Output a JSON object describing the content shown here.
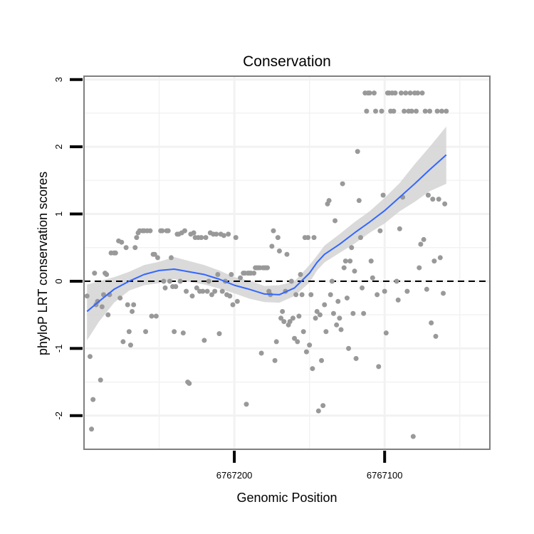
{
  "chart_data": {
    "type": "scatter",
    "title": "Conservation",
    "xlabel": "Genomic Position",
    "ylabel": "phyloP LRT conservation scores",
    "xlim": [
      6767300,
      6767030
    ],
    "ylim": [
      -2.5,
      3.05
    ],
    "x_ticks": [
      {
        "value": 6767200,
        "label": "6767200"
      },
      {
        "value": 6767100,
        "label": "6767100"
      }
    ],
    "y_ticks": [
      {
        "value": -2,
        "label": "-2"
      },
      {
        "value": -1,
        "label": "-1"
      },
      {
        "value": 0,
        "label": "0"
      },
      {
        "value": 1,
        "label": "1"
      },
      {
        "value": 2,
        "label": "2"
      },
      {
        "value": 3,
        "label": "3"
      }
    ],
    "reference_line": {
      "y": 0,
      "style": "dashed",
      "color": "#000000"
    },
    "grid": true,
    "colors": {
      "points": "#999999",
      "smooth_line": "#3366ff",
      "confidence_band": "#d3d3d3",
      "panel_border": "#7f7f7f",
      "gridlines": "#f2f2f2"
    },
    "series": [
      {
        "name": "phyloP LRT scores",
        "type": "scatter",
        "points": [
          [
            6767298,
            -0.22
          ],
          [
            6767296,
            -1.12
          ],
          [
            6767295,
            -2.2
          ],
          [
            6767294,
            -1.76
          ],
          [
            6767293,
            0.12
          ],
          [
            6767292,
            -0.35
          ],
          [
            6767291,
            -0.3
          ],
          [
            6767289,
            -1.47
          ],
          [
            6767288,
            -0.38
          ],
          [
            6767287,
            -0.2
          ],
          [
            6767286,
            0.12
          ],
          [
            6767285,
            0.1
          ],
          [
            6767284,
            -0.5
          ],
          [
            6767283,
            -0.2
          ],
          [
            6767282,
            0.42
          ],
          [
            6767280,
            0.42
          ],
          [
            6767279,
            0.42
          ],
          [
            6767277,
            0.6
          ],
          [
            6767276,
            -0.25
          ],
          [
            6767275,
            0.58
          ],
          [
            6767274,
            -0.9
          ],
          [
            6767272,
            0.5
          ],
          [
            6767271,
            -0.35
          ],
          [
            6767270,
            -0.75
          ],
          [
            6767269,
            -0.95
          ],
          [
            6767268,
            -0.45
          ],
          [
            6767267,
            -0.35
          ],
          [
            6767266,
            0.5
          ],
          [
            6767265,
            0.65
          ],
          [
            6767264,
            0.72
          ],
          [
            6767263,
            0.75
          ],
          [
            6767261,
            0.75
          ],
          [
            6767260,
            0.75
          ],
          [
            6767259,
            -0.75
          ],
          [
            6767258,
            0.75
          ],
          [
            6767256,
            0.75
          ],
          [
            6767255,
            -0.52
          ],
          [
            6767254,
            0.4
          ],
          [
            6767253,
            0.4
          ],
          [
            6767252,
            -0.52
          ],
          [
            6767251,
            0.35
          ],
          [
            6767249,
            0.75
          ],
          [
            6767248,
            0.75
          ],
          [
            6767247,
            0.0
          ],
          [
            6767246,
            -0.1
          ],
          [
            6767245,
            0.75
          ],
          [
            6767244,
            0.75
          ],
          [
            6767243,
            0.0
          ],
          [
            6767242,
            0.35
          ],
          [
            6767241,
            -0.08
          ],
          [
            6767240,
            -0.75
          ],
          [
            6767239,
            -0.08
          ],
          [
            6767238,
            0.7
          ],
          [
            6767237,
            0.7
          ],
          [
            6767236,
            0.0
          ],
          [
            6767235,
            0.72
          ],
          [
            6767234,
            -0.77
          ],
          [
            6767233,
            0.75
          ],
          [
            6767232,
            -0.15
          ],
          [
            6767231,
            -1.5
          ],
          [
            6767230,
            -1.52
          ],
          [
            6767229,
            0.7
          ],
          [
            6767228,
            -0.22
          ],
          [
            6767227,
            0.72
          ],
          [
            6767226,
            0.65
          ],
          [
            6767225,
            -0.1
          ],
          [
            6767224,
            0.65
          ],
          [
            6767223,
            -0.15
          ],
          [
            6767222,
            0.65
          ],
          [
            6767221,
            -0.15
          ],
          [
            6767220,
            -0.88
          ],
          [
            6767219,
            0.65
          ],
          [
            6767218,
            -0.15
          ],
          [
            6767217,
            0.0
          ],
          [
            6767216,
            0.72
          ],
          [
            6767215,
            -0.2
          ],
          [
            6767214,
            0.7
          ],
          [
            6767213,
            -0.15
          ],
          [
            6767212,
            0.7
          ],
          [
            6767211,
            0.1
          ],
          [
            6767210,
            -0.78
          ],
          [
            6767209,
            0.7
          ],
          [
            6767208,
            -0.15
          ],
          [
            6767207,
            0.68
          ],
          [
            6767206,
            0.0
          ],
          [
            6767205,
            -0.2
          ],
          [
            6767204,
            0.7
          ],
          [
            6767203,
            -0.22
          ],
          [
            6767202,
            0.1
          ],
          [
            6767201,
            -0.35
          ],
          [
            6767199,
            0.65
          ],
          [
            6767198,
            -0.3
          ],
          [
            6767196,
            0.05
          ],
          [
            6767194,
            0.12
          ],
          [
            6767193,
            0.12
          ],
          [
            6767192,
            -1.83
          ],
          [
            6767191,
            0.12
          ],
          [
            6767190,
            0.12
          ],
          [
            6767189,
            0.12
          ],
          [
            6767187,
            0.12
          ],
          [
            6767186,
            0.2
          ],
          [
            6767185,
            0.2
          ],
          [
            6767184,
            0.2
          ],
          [
            6767183,
            0.2
          ],
          [
            6767182,
            -1.07
          ],
          [
            6767181,
            0.2
          ],
          [
            6767180,
            0.2
          ],
          [
            6767179,
            0.2
          ],
          [
            6767178,
            0.2
          ],
          [
            6767177,
            -0.15
          ],
          [
            6767176,
            -0.2
          ],
          [
            6767175,
            0.52
          ],
          [
            6767174,
            0.75
          ],
          [
            6767173,
            -1.18
          ],
          [
            6767172,
            -0.9
          ],
          [
            6767171,
            0.65
          ],
          [
            6767170,
            0.45
          ],
          [
            6767169,
            -0.55
          ],
          [
            6767168,
            -0.45
          ],
          [
            6767167,
            -0.6
          ],
          [
            6767166,
            -0.15
          ],
          [
            6767165,
            0.4
          ],
          [
            6767164,
            -0.65
          ],
          [
            6767163,
            -0.6
          ],
          [
            6767162,
            0.0
          ],
          [
            6767161,
            -0.55
          ],
          [
            6767160,
            -0.85
          ],
          [
            6767159,
            -0.2
          ],
          [
            6767158,
            -0.9
          ],
          [
            6767157,
            -0.52
          ],
          [
            6767156,
            0.1
          ],
          [
            6767155,
            -0.2
          ],
          [
            6767154,
            -0.75
          ],
          [
            6767153,
            0.65
          ],
          [
            6767152,
            -1.05
          ],
          [
            6767151,
            0.65
          ],
          [
            6767150,
            -0.95
          ],
          [
            6767149,
            -0.2
          ],
          [
            6767148,
            -1.3
          ],
          [
            6767147,
            0.65
          ],
          [
            6767146,
            -0.55
          ],
          [
            6767145,
            -0.45
          ],
          [
            6767144,
            -1.93
          ],
          [
            6767143,
            -0.5
          ],
          [
            6767142,
            -1.18
          ],
          [
            6767141,
            -1.85
          ],
          [
            6767140,
            -0.35
          ],
          [
            6767139,
            -0.75
          ],
          [
            6767138,
            1.15
          ],
          [
            6767137,
            1.2
          ],
          [
            6767136,
            -0.2
          ],
          [
            6767135,
            0.0
          ],
          [
            6767134,
            -0.48
          ],
          [
            6767133,
            0.9
          ],
          [
            6767132,
            -0.65
          ],
          [
            6767131,
            -0.3
          ],
          [
            6767130,
            -0.55
          ],
          [
            6767129,
            -0.72
          ],
          [
            6767128,
            1.45
          ],
          [
            6767127,
            0.2
          ],
          [
            6767126,
            0.3
          ],
          [
            6767125,
            -0.25
          ],
          [
            6767124,
            -1.0
          ],
          [
            6767123,
            0.3
          ],
          [
            6767122,
            0.5
          ],
          [
            6767121,
            -0.48
          ],
          [
            6767120,
            0.15
          ],
          [
            6767119,
            -1.15
          ],
          [
            6767118,
            1.93
          ],
          [
            6767117,
            1.2
          ],
          [
            6767116,
            0.65
          ],
          [
            6767115,
            -0.1
          ],
          [
            6767114,
            -0.48
          ],
          [
            6767113,
            2.8
          ],
          [
            6767112,
            2.53
          ],
          [
            6767111,
            2.8
          ],
          [
            6767110,
            2.8
          ],
          [
            6767109,
            0.3
          ],
          [
            6767108,
            0.05
          ],
          [
            6767107,
            2.8
          ],
          [
            6767106,
            2.53
          ],
          [
            6767105,
            -0.2
          ],
          [
            6767104,
            -1.27
          ],
          [
            6767103,
            0.75
          ],
          [
            6767102,
            2.53
          ],
          [
            6767101,
            1.28
          ],
          [
            6767100,
            -0.15
          ],
          [
            6767099,
            -0.77
          ],
          [
            6767098,
            2.8
          ],
          [
            6767097,
            2.8
          ],
          [
            6767096,
            2.53
          ],
          [
            6767095,
            2.8
          ],
          [
            6767094,
            2.53
          ],
          [
            6767093,
            2.8
          ],
          [
            6767092,
            0.0
          ],
          [
            6767091,
            -0.28
          ],
          [
            6767090,
            0.78
          ],
          [
            6767089,
            2.8
          ],
          [
            6767088,
            1.25
          ],
          [
            6767087,
            2.53
          ],
          [
            6767086,
            2.8
          ],
          [
            6767085,
            -0.15
          ],
          [
            6767084,
            2.53
          ],
          [
            6767083,
            2.8
          ],
          [
            6767082,
            2.53
          ],
          [
            6767081,
            -2.31
          ],
          [
            6767080,
            2.8
          ],
          [
            6767079,
            2.53
          ],
          [
            6767078,
            2.8
          ],
          [
            6767077,
            0.2
          ],
          [
            6767076,
            0.55
          ],
          [
            6767075,
            2.8
          ],
          [
            6767074,
            0.62
          ],
          [
            6767073,
            2.53
          ],
          [
            6767072,
            -0.12
          ],
          [
            6767071,
            1.28
          ],
          [
            6767070,
            2.53
          ],
          [
            6767069,
            -0.62
          ],
          [
            6767068,
            1.22
          ],
          [
            6767067,
            0.3
          ],
          [
            6767066,
            -0.82
          ],
          [
            6767065,
            2.53
          ],
          [
            6767064,
            1.22
          ],
          [
            6767063,
            0.35
          ],
          [
            6767062,
            2.53
          ],
          [
            6767061,
            -0.18
          ],
          [
            6767060,
            1.15
          ],
          [
            6767059,
            2.53
          ]
        ]
      },
      {
        "name": "smoothed fit",
        "type": "line",
        "x": [
          6767298,
          6767290,
          6767280,
          6767270,
          6767260,
          6767250,
          6767240,
          6767230,
          6767220,
          6767210,
          6767200,
          6767190,
          6767180,
          6767170,
          6767160,
          6767150,
          6767145,
          6767140,
          6767130,
          6767120,
          6767110,
          6767100,
          6767090,
          6767080,
          6767070,
          6767059
        ],
        "y": [
          -0.45,
          -0.3,
          -0.12,
          0.0,
          0.1,
          0.16,
          0.18,
          0.14,
          0.1,
          0.03,
          -0.06,
          -0.12,
          -0.19,
          -0.2,
          -0.1,
          0.12,
          0.28,
          0.4,
          0.55,
          0.72,
          0.88,
          1.05,
          1.25,
          1.45,
          1.66,
          1.88
        ],
        "ci_upper": [
          -0.05,
          0.0,
          0.06,
          0.14,
          0.24,
          0.29,
          0.36,
          0.3,
          0.24,
          0.16,
          0.06,
          0.01,
          -0.07,
          -0.06,
          0.0,
          0.24,
          0.38,
          0.53,
          0.7,
          0.88,
          1.04,
          1.24,
          1.46,
          1.74,
          2.0,
          2.3
        ],
        "ci_lower": [
          -0.88,
          -0.6,
          -0.32,
          -0.14,
          -0.06,
          -0.03,
          0.03,
          -0.01,
          -0.05,
          -0.11,
          -0.18,
          -0.26,
          -0.31,
          -0.32,
          -0.22,
          -0.02,
          0.16,
          0.28,
          0.42,
          0.56,
          0.72,
          0.86,
          1.04,
          1.18,
          1.34,
          1.45
        ]
      }
    ]
  }
}
